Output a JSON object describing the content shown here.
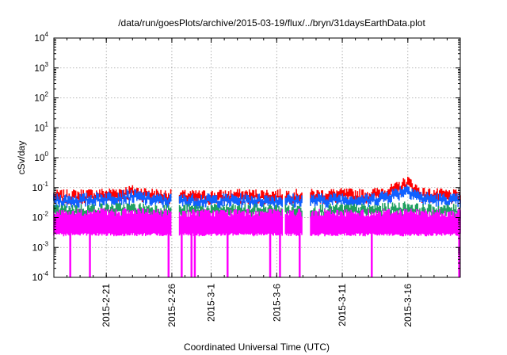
{
  "chart_data": {
    "type": "area",
    "title": "/data/run/goesPlots/archive/2015-03-19/flux/../bryn/31daysEarthData.plot",
    "xlabel": "Coordinated Universal Time (UTC)",
    "ylabel": "cSv/day",
    "yscale": "log",
    "ylim": [
      0.0001,
      10000
    ],
    "xlim": [
      "2015-02-17",
      "2015-03-20"
    ],
    "grid": true,
    "legend": "none",
    "y_ticks": [
      {
        "value": 0.0001,
        "mantissa": "10",
        "exp": "-4"
      },
      {
        "value": 0.001,
        "mantissa": "10",
        "exp": "-3"
      },
      {
        "value": 0.01,
        "mantissa": "10",
        "exp": "-2"
      },
      {
        "value": 0.1,
        "mantissa": "10",
        "exp": "-1"
      },
      {
        "value": 1,
        "mantissa": "10",
        "exp": "0"
      },
      {
        "value": 10,
        "mantissa": "10",
        "exp": "1"
      },
      {
        "value": 100,
        "mantissa": "10",
        "exp": "2"
      },
      {
        "value": 1000,
        "mantissa": "10",
        "exp": "3"
      },
      {
        "value": 10000,
        "mantissa": "10",
        "exp": "4"
      }
    ],
    "x_ticks": [
      {
        "date": "2015-02-21",
        "label": "2015-2-21"
      },
      {
        "date": "2015-02-26",
        "label": "2015-2-26"
      },
      {
        "date": "2015-03-01",
        "label": "2015-3-1"
      },
      {
        "date": "2015-03-06",
        "label": "2015-3-6"
      },
      {
        "date": "2015-03-11",
        "label": "2015-3-11"
      },
      {
        "date": "2015-03-16",
        "label": "2015-3-16"
      }
    ],
    "data_gaps": [
      [
        "2015-02-26",
        "2015-02-26T12:00"
      ],
      [
        "2015-03-06T12:00",
        "2015-03-06T15:00"
      ],
      [
        "2015-03-08",
        "2015-03-08T12:00"
      ]
    ],
    "series": [
      {
        "color": "#ff0000",
        "x": [
          "2015-02-17",
          "2015-02-19",
          "2015-02-21",
          "2015-02-23",
          "2015-02-25",
          "2015-02-27",
          "2015-03-01",
          "2015-03-03",
          "2015-03-05",
          "2015-03-07",
          "2015-03-09",
          "2015-03-11",
          "2015-03-13",
          "2015-03-15",
          "2015-03-16",
          "2015-03-17",
          "2015-03-19",
          "2015-03-20"
        ],
        "y": [
          0.065,
          0.07,
          0.075,
          0.095,
          0.07,
          0.065,
          0.065,
          0.07,
          0.07,
          0.07,
          0.07,
          0.075,
          0.07,
          0.11,
          0.2,
          0.08,
          0.07,
          0.065
        ]
      },
      {
        "color": "#1060ff",
        "x": [
          "2015-02-17",
          "2015-02-19",
          "2015-02-21",
          "2015-02-23",
          "2015-02-25",
          "2015-02-27",
          "2015-03-01",
          "2015-03-03",
          "2015-03-05",
          "2015-03-07",
          "2015-03-09",
          "2015-03-11",
          "2015-03-13",
          "2015-03-15",
          "2015-03-16",
          "2015-03-17",
          "2015-03-19",
          "2015-03-20"
        ],
        "y": [
          0.05,
          0.05,
          0.06,
          0.07,
          0.05,
          0.05,
          0.05,
          0.05,
          0.05,
          0.05,
          0.05,
          0.055,
          0.05,
          0.08,
          0.12,
          0.06,
          0.05,
          0.05
        ]
      },
      {
        "color": "#20a060",
        "x": [
          "2015-02-17",
          "2015-02-19",
          "2015-02-21",
          "2015-02-23",
          "2015-02-25",
          "2015-02-27",
          "2015-03-01",
          "2015-03-03",
          "2015-03-05",
          "2015-03-07",
          "2015-03-09",
          "2015-03-11",
          "2015-03-13",
          "2015-03-15",
          "2015-03-16",
          "2015-03-17",
          "2015-03-19",
          "2015-03-20"
        ],
        "y": [
          0.022,
          0.022,
          0.024,
          0.025,
          0.022,
          0.022,
          0.022,
          0.022,
          0.022,
          0.022,
          0.022,
          0.023,
          0.022,
          0.025,
          0.028,
          0.022,
          0.022,
          0.022
        ]
      },
      {
        "color": "#ff00ff",
        "x": [
          "2015-02-17",
          "2015-02-19",
          "2015-02-21",
          "2015-02-23",
          "2015-02-25",
          "2015-02-27",
          "2015-03-01",
          "2015-03-03",
          "2015-03-05",
          "2015-03-07",
          "2015-03-09",
          "2015-03-11",
          "2015-03-13",
          "2015-03-15",
          "2015-03-16",
          "2015-03-17",
          "2015-03-19",
          "2015-03-20"
        ],
        "y": [
          0.015,
          0.015,
          0.016,
          0.016,
          0.015,
          0.015,
          0.015,
          0.015,
          0.015,
          0.015,
          0.015,
          0.015,
          0.015,
          0.016,
          0.016,
          0.015,
          0.015,
          0.015
        ],
        "floor": 0.003
      }
    ],
    "magenta_dropouts": [
      "2015-02-18T06:00",
      "2015-02-19T18:00",
      "2015-02-25T18:00",
      "2015-02-26T18:00",
      "2015-02-27T12:00",
      "2015-02-27T18:00",
      "2015-03-02T06:00",
      "2015-03-05T12:00",
      "2015-03-06T06:00",
      "2015-03-07T18:00",
      "2015-03-13T06:00",
      "2015-03-19T22:00"
    ]
  }
}
